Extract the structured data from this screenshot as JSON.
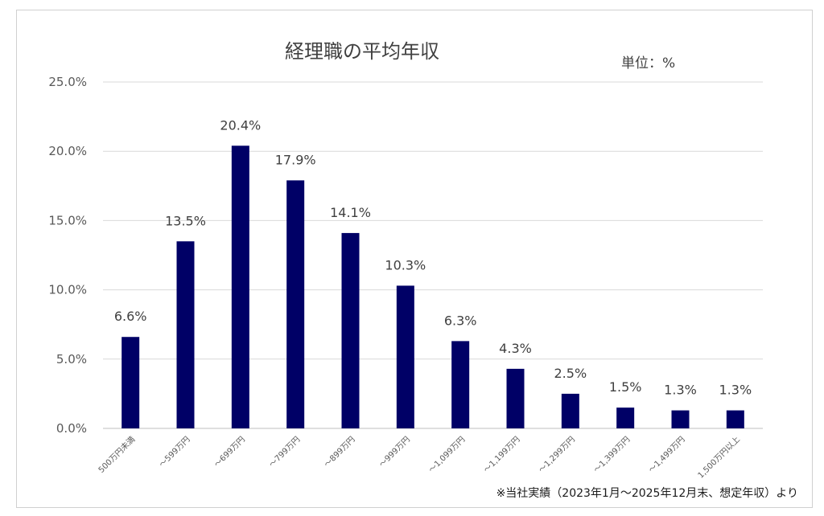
{
  "chart_data": {
    "type": "bar",
    "title": "経理職の平均年収",
    "unit_label": "単位：%",
    "footnote": "※当社実績（2023年1月～2025年12月末、想定年収）より",
    "categories": [
      "500万円未満",
      "～599万円",
      "～699万円",
      "～799万円",
      "～899万円",
      "～999万円",
      "～1,099万円",
      "～1,199万円",
      "～1,299万円",
      "～1,399万円",
      "～1,499万円",
      "1,500万円以上"
    ],
    "values": [
      6.6,
      13.5,
      20.4,
      17.9,
      14.1,
      10.3,
      6.3,
      4.3,
      2.5,
      1.5,
      1.3,
      1.3
    ],
    "value_labels": [
      "6.6%",
      "13.5%",
      "20.4%",
      "17.9%",
      "14.1%",
      "10.3%",
      "6.3%",
      "4.3%",
      "2.5%",
      "1.5%",
      "1.3%",
      "1.3%"
    ],
    "yticks": [
      0,
      5,
      10,
      15,
      20,
      25
    ],
    "ytick_labels": [
      "0.0%",
      "5.0%",
      "10.0%",
      "15.0%",
      "20.0%",
      "25.0%"
    ],
    "ylim": [
      0,
      25
    ],
    "grid": true,
    "bar_color": "#000066"
  }
}
